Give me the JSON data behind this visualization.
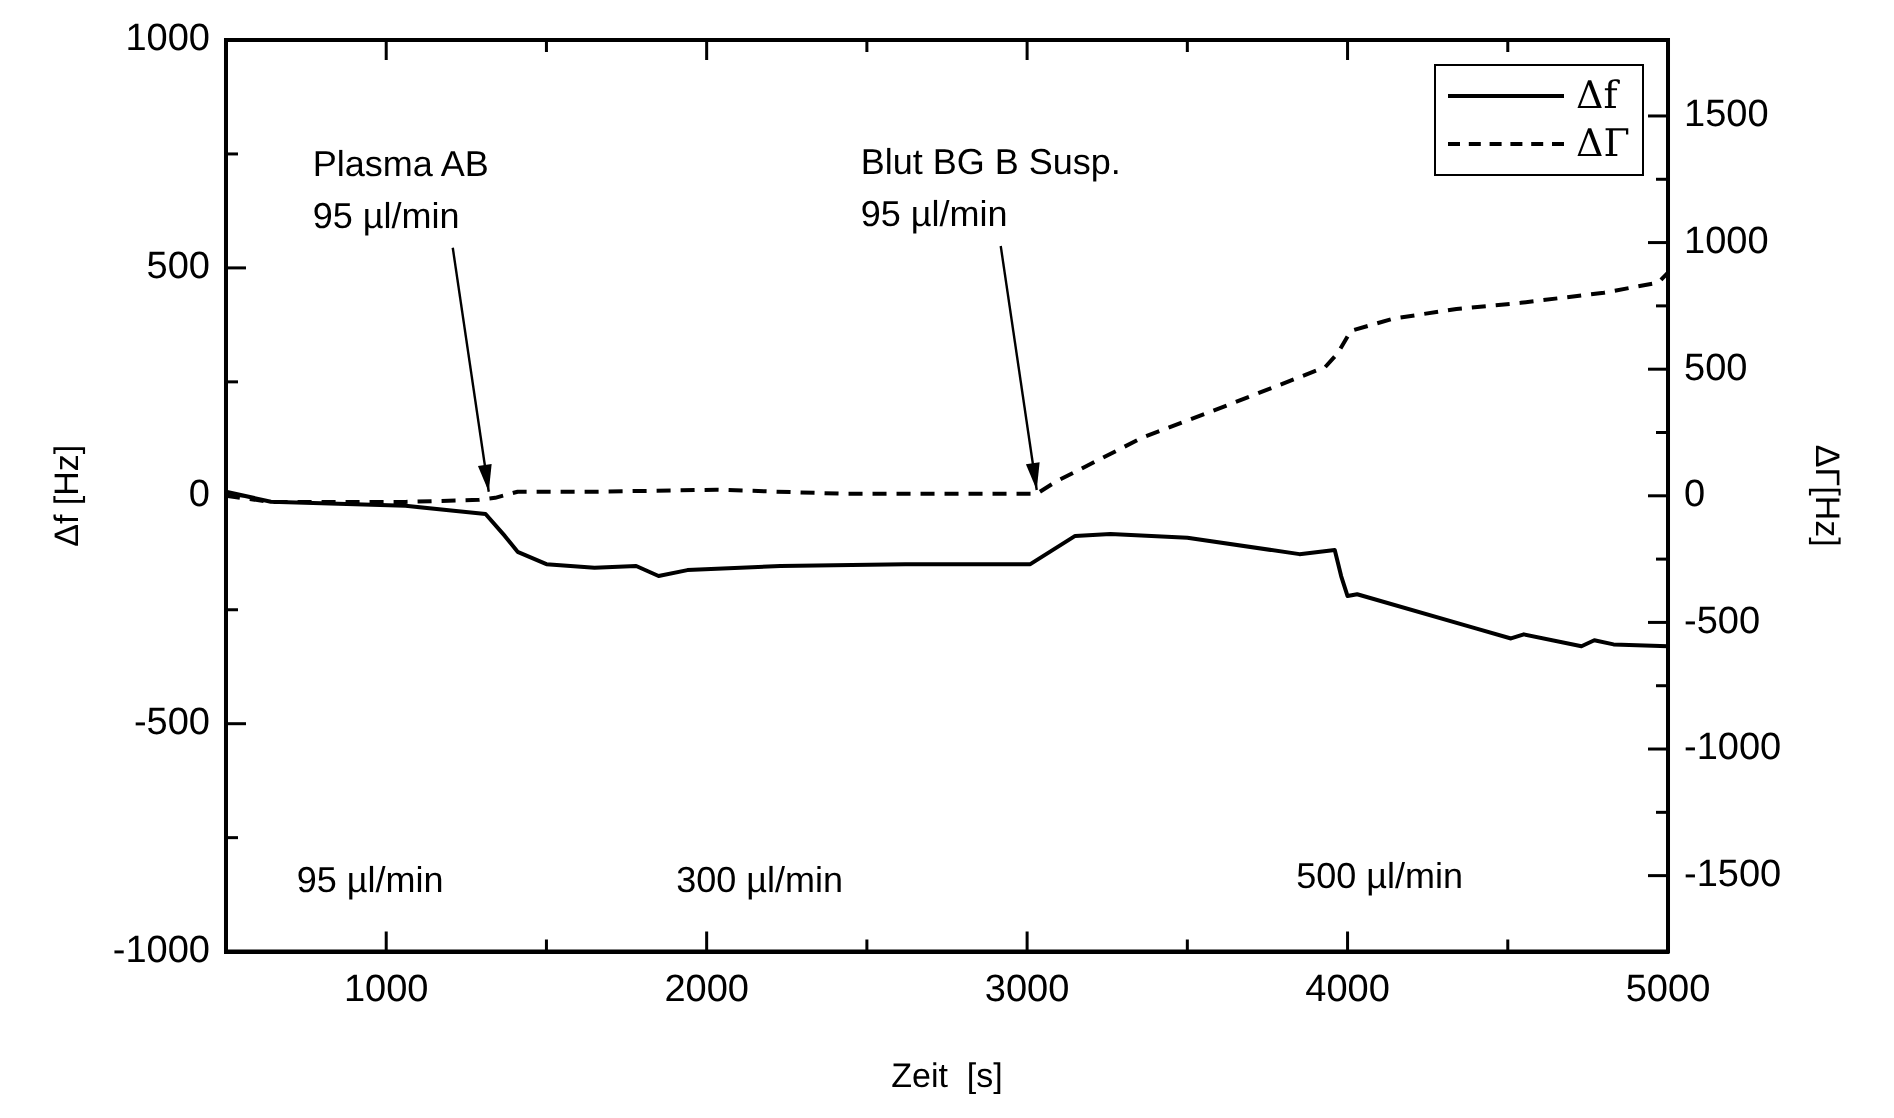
{
  "chart_data": {
    "type": "line",
    "xlabel": "Zeit  [s]",
    "ylabel": "Δf [Hz]",
    "y2label": "ΔΓ[Hz]",
    "xlim": [
      500,
      5000
    ],
    "xticks": [
      1000,
      {
        "value": 1500,
        "label": null
      },
      2000,
      {
        "value": 2500,
        "label": null
      },
      3000,
      {
        "value": 3500,
        "label": null
      },
      4000,
      {
        "value": 4500,
        "label": null
      },
      5000
    ],
    "ylim": [
      -1000,
      1000
    ],
    "yticks": [
      -1000,
      {
        "value": -750,
        "label": null
      },
      -500,
      {
        "value": -250,
        "label": null
      },
      0,
      {
        "value": 250,
        "label": null
      },
      500,
      {
        "value": 750,
        "label": null
      },
      1000
    ],
    "y2lim": [
      -1800,
      1800
    ],
    "y2ticks": [
      -1500,
      {
        "value": -1250,
        "label": null
      },
      -1000,
      {
        "value": -750,
        "label": null
      },
      -500,
      {
        "value": -250,
        "label": null
      },
      0,
      {
        "value": 250,
        "label": null
      },
      500,
      {
        "value": 750,
        "label": null
      },
      1000,
      {
        "value": 1250,
        "label": null
      },
      1500
    ],
    "grid": false,
    "legend": "top right",
    "marker": "none",
    "series": [
      {
        "name": "Δf",
        "color": "#000000",
        "line_style": "solid",
        "x": [
          500,
          640,
          1060,
          1310,
          1370,
          1410,
          1500,
          1650,
          1780,
          1850,
          1940,
          2230,
          2620,
          2900,
          3010,
          3150,
          3260,
          3500,
          3850,
          3960,
          3980,
          4000,
          4030,
          4400,
          4510,
          4550,
          4730,
          4770,
          4830,
          5000
        ],
        "values": [
          9,
          -13,
          -22,
          -40,
          -88,
          -123,
          -150,
          -158,
          -154,
          -176,
          -163,
          -154,
          -150,
          -150,
          -150,
          -88,
          -84,
          -92,
          -128,
          -119,
          -176,
          -220,
          -216,
          -291,
          -313,
          -304,
          -330,
          -317,
          -326,
          -330
        ]
      },
      {
        "name": "ΔΓ",
        "color": "#000000",
        "line_style": "dashed",
        "axis": "y2",
        "x": [
          500,
          640,
          1060,
          1290,
          1340,
          1410,
          1650,
          2030,
          2430,
          2900,
          3030,
          3090,
          3360,
          3640,
          3930,
          3970,
          4010,
          4140,
          4340,
          4540,
          4800,
          4970,
          5000
        ],
        "values": [
          0,
          -24,
          -24,
          -16,
          -8,
          16,
          16,
          24,
          8,
          8,
          8,
          56,
          230,
          365,
          508,
          564,
          651,
          699,
          738,
          762,
          802,
          842,
          881
        ]
      }
    ],
    "annotations": [
      {
        "text": "Plasma AB\n95 µl/min",
        "x": 1320,
        "y": 0
      },
      {
        "text": "Blut BG B Susp.\n95 µl/min",
        "x": 3030,
        "y": 4
      },
      "95 µl/min",
      "300 µl/min",
      "500 µl/min"
    ]
  }
}
